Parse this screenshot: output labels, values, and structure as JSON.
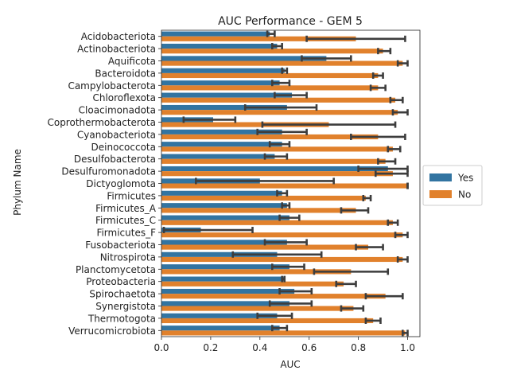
{
  "chart_data": {
    "type": "bar",
    "orientation": "horizontal",
    "title": "AUC Performance - GEM 5",
    "xlabel": "AUC",
    "ylabel": "Phylum Name",
    "xlim": [
      0,
      1.05
    ],
    "xticks": [
      "0.0",
      "0.2",
      "0.4",
      "0.6",
      "0.8",
      "1.0"
    ],
    "xtick_values": [
      0,
      0.2,
      0.4,
      0.6,
      0.8,
      1.0
    ],
    "legend_position": "center-right",
    "grid": false,
    "categories": [
      "Acidobacteriota",
      "Actinobacteriota",
      "Aquificota",
      "Bacteroidota",
      "Campylobacterota",
      "Chloroflexota",
      "Cloacimonadota",
      "Coprothermobacterota",
      "Cyanobacteriota",
      "Deinococcota",
      "Desulfobacterota",
      "Desulfuromonadota",
      "Dictyoglomota",
      "Firmicutes",
      "Firmicutes_A",
      "Firmicutes_C",
      "Firmicutes_F",
      "Fusobacteriota",
      "Nitrospirota",
      "Planctomycetota",
      "Proteobacteria",
      "Spirochaetota",
      "Synergistota",
      "Thermotogota",
      "Verrucomicrobiota"
    ],
    "series": [
      {
        "name": "Yes",
        "color": "#3274a1",
        "values": [
          0.44,
          0.47,
          0.67,
          0.5,
          0.48,
          0.53,
          0.51,
          0.21,
          0.49,
          0.49,
          0.46,
          0.92,
          0.4,
          0.49,
          0.51,
          0.52,
          0.16,
          0.51,
          0.47,
          0.52,
          0.5,
          0.54,
          0.52,
          0.47,
          0.48
        ],
        "err_low": [
          0.43,
          0.45,
          0.57,
          0.49,
          0.45,
          0.46,
          0.34,
          0.09,
          0.39,
          0.44,
          0.42,
          0.8,
          0.14,
          0.47,
          0.49,
          0.48,
          0.01,
          0.42,
          0.29,
          0.45,
          0.49,
          0.48,
          0.44,
          0.39,
          0.45
        ],
        "err_high": [
          0.46,
          0.49,
          0.77,
          0.51,
          0.52,
          0.59,
          0.63,
          0.3,
          0.59,
          0.52,
          0.51,
          1.0,
          0.7,
          0.51,
          0.52,
          0.56,
          0.37,
          0.59,
          0.65,
          0.58,
          0.5,
          0.61,
          0.61,
          0.53,
          0.51
        ]
      },
      {
        "name": "No",
        "color": "#e1812c",
        "values": [
          0.79,
          0.9,
          0.98,
          0.88,
          0.88,
          0.95,
          0.96,
          0.68,
          0.88,
          0.94,
          0.91,
          0.94,
          1.0,
          0.83,
          0.79,
          0.94,
          0.98,
          0.84,
          0.98,
          0.77,
          0.74,
          0.91,
          0.78,
          0.86,
          0.99
        ],
        "err_low": [
          0.59,
          0.88,
          0.96,
          0.86,
          0.85,
          0.93,
          0.94,
          0.41,
          0.77,
          0.92,
          0.88,
          0.87,
          1.0,
          0.82,
          0.73,
          0.92,
          0.95,
          0.79,
          0.96,
          0.62,
          0.71,
          0.83,
          0.73,
          0.83,
          0.98
        ],
        "err_high": [
          0.99,
          0.93,
          1.0,
          0.9,
          0.91,
          0.98,
          1.0,
          0.95,
          0.99,
          0.97,
          0.95,
          1.0,
          1.0,
          0.85,
          0.84,
          0.96,
          1.0,
          0.9,
          1.0,
          0.92,
          0.79,
          0.98,
          0.82,
          0.89,
          1.0
        ]
      }
    ]
  }
}
